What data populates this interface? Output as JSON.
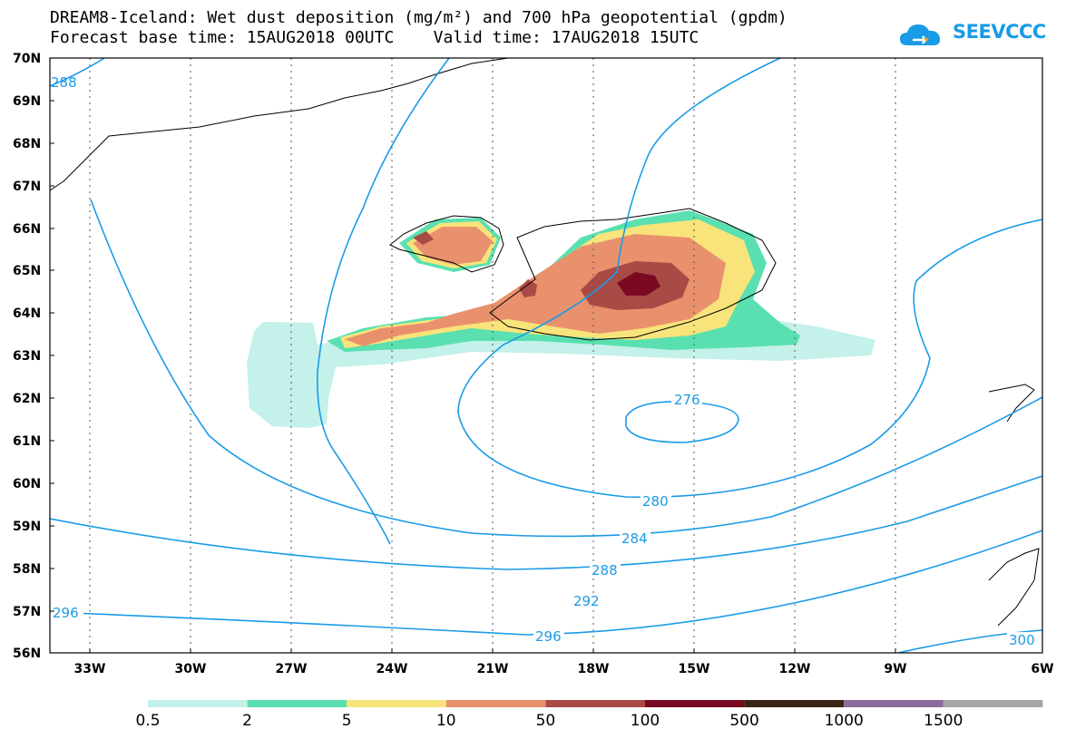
{
  "title": {
    "line1": "DREAM8-Iceland: Wet dust deposition (mg/m²) and 700 hPa geopotential (gpdm)",
    "line2": "Forecast base time: 15AUG2018 00UTC    Valid time: 17AUG2018 15UTC"
  },
  "logo": {
    "text": "SEEVCCC",
    "icon": "cloud-icon",
    "color": "#1a9be6"
  },
  "map": {
    "lat_labels": [
      "70N",
      "69N",
      "68N",
      "67N",
      "66N",
      "65N",
      "64N",
      "63N",
      "62N",
      "61N",
      "60N",
      "59N",
      "58N",
      "57N",
      "56N"
    ],
    "lon_labels": [
      "33W",
      "30W",
      "27W",
      "24W",
      "21W",
      "18W",
      "15W",
      "12W",
      "9W",
      "6W"
    ],
    "contour_color": "#1a9be6",
    "contour_labels": [
      "276",
      "280",
      "284",
      "288",
      "292",
      "296",
      "296",
      "300",
      "288"
    ]
  },
  "colorbar": {
    "labels": [
      "0.5",
      "2",
      "5",
      "10",
      "50",
      "100",
      "500",
      "1000",
      "1500"
    ],
    "colors": [
      "#c4f1ea",
      "#5ae0b0",
      "#f8e47a",
      "#e9916d",
      "#a84a45",
      "#7a0a22",
      "#3a2416",
      "#8e6b9e",
      "#a7a7a7"
    ]
  }
}
